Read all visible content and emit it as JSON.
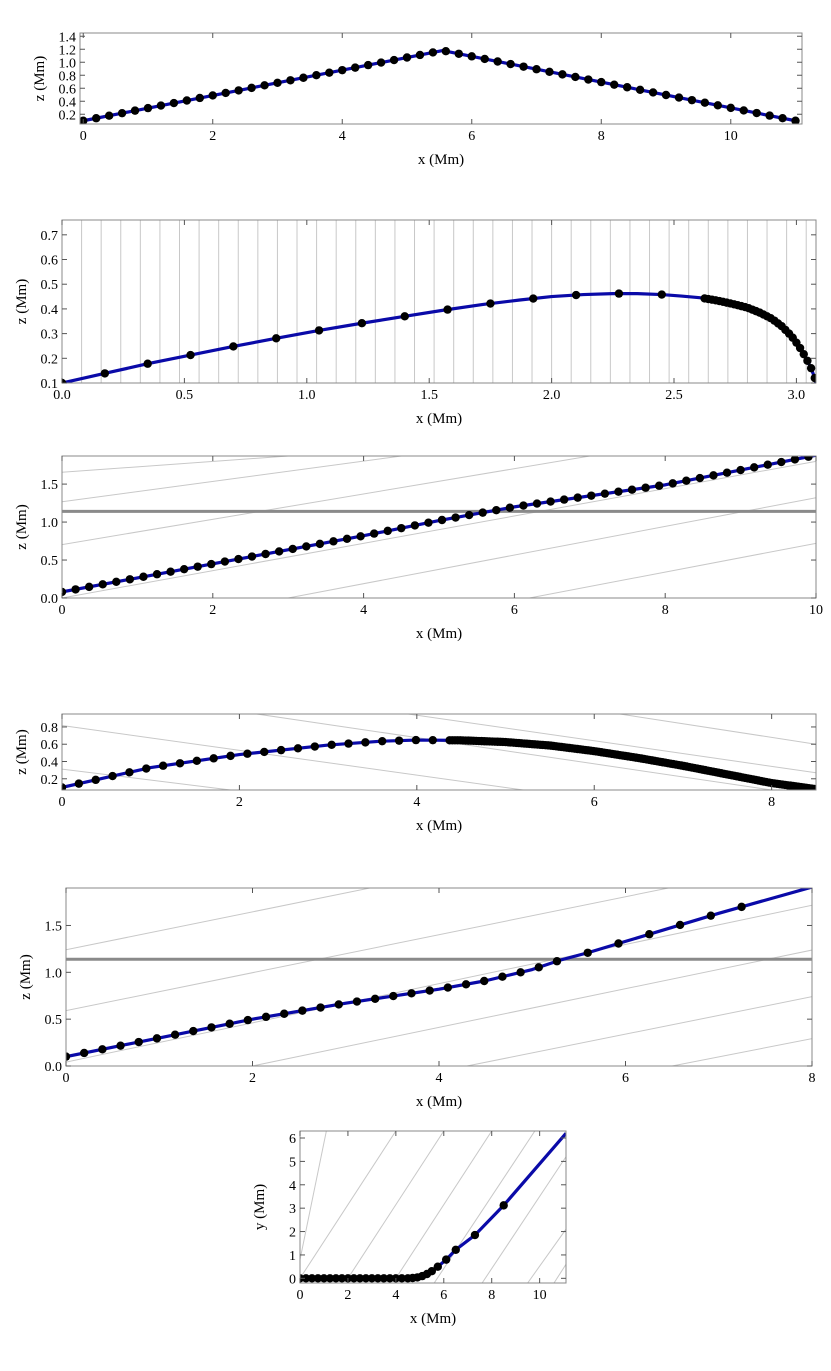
{
  "chart_data": [
    {
      "type": "line",
      "title": "",
      "xlabel": "x (Mm)",
      "ylabel": "z (Mm)",
      "xlim": [
        -0.05,
        11.1
      ],
      "ylim": [
        0.05,
        1.45
      ],
      "xticks": [
        0,
        2,
        4,
        6,
        8,
        10
      ],
      "xtick_labels": [
        "0",
        "2",
        "4",
        "6",
        "8",
        "10"
      ],
      "yticks": [
        0.2,
        0.4,
        0.6,
        0.8,
        1.0,
        1.2,
        1.4
      ],
      "ytick_labels": [
        "0.2",
        "0.4",
        "0.6",
        "0.8",
        "1.0",
        "1.2",
        "1.4"
      ],
      "series": [
        {
          "style": "blue line with black dots",
          "color": "#0a0aa8",
          "x": [
            0,
            5.55,
            11.0
          ],
          "y": [
            0.1,
            1.18,
            0.1
          ],
          "x_markers": [
            0,
            11.0,
            0.2
          ]
        }
      ],
      "guides": {
        "slanted": [],
        "horizontal": [],
        "vertical": []
      },
      "grid": false
    },
    {
      "type": "line",
      "title": "",
      "xlabel": "x (Mm)",
      "ylabel": "z (Mm)",
      "xlim": [
        0,
        3.08
      ],
      "ylim": [
        0.1,
        0.76
      ],
      "xticks": [
        0.0,
        0.5,
        1.0,
        1.5,
        2.0,
        2.5,
        3.0
      ],
      "xtick_labels": [
        "0.0",
        "0.5",
        "1.0",
        "1.5",
        "2.0",
        "2.5",
        "3.0"
      ],
      "yticks": [
        0.1,
        0.2,
        0.3,
        0.4,
        0.5,
        0.6,
        0.7
      ],
      "ytick_labels": [
        "0.1",
        "0.2",
        "0.3",
        "0.4",
        "0.5",
        "0.6",
        "0.7"
      ],
      "series": [
        {
          "style": "blue line with black dots",
          "color": "#0a0aa8",
          "x": [
            0,
            0.18,
            0.35,
            0.53,
            0.7,
            0.88,
            1.05,
            1.23,
            1.4,
            1.56,
            1.72,
            1.87,
            2.0,
            2.13,
            2.25,
            2.35,
            2.45,
            2.53,
            2.61,
            2.68,
            2.74,
            2.8,
            2.85,
            2.9,
            2.94,
            2.98,
            3.01,
            3.04,
            3.06,
            3.075,
            3.08
          ],
          "y": [
            0.1,
            0.14,
            0.178,
            0.214,
            0.248,
            0.282,
            0.313,
            0.343,
            0.37,
            0.395,
            0.418,
            0.436,
            0.45,
            0.458,
            0.462,
            0.462,
            0.458,
            0.452,
            0.445,
            0.433,
            0.42,
            0.405,
            0.385,
            0.36,
            0.33,
            0.29,
            0.25,
            0.2,
            0.16,
            0.12,
            0.1
          ],
          "marker_step": 0.175,
          "marker_step_dense": 0.015,
          "dense_after_x": 2.5
        }
      ],
      "guides": {
        "slanted": [],
        "horizontal": [],
        "vertical": [
          0.08,
          0.16,
          0.24,
          0.32,
          0.4,
          0.48,
          0.56,
          0.64,
          0.72,
          0.8,
          0.88,
          0.96,
          1.04,
          1.12,
          1.2,
          1.28,
          1.36,
          1.44,
          1.52,
          1.6,
          1.68,
          1.76,
          1.84,
          1.92,
          2.0,
          2.08,
          2.16,
          2.24,
          2.32,
          2.4,
          2.48,
          2.56,
          2.64,
          2.72,
          2.8,
          2.88,
          2.96,
          3.04
        ]
      },
      "grid": false
    },
    {
      "type": "line",
      "title": "",
      "xlabel": "x (Mm)",
      "ylabel": "z (Mm)",
      "xlim": [
        0,
        10
      ],
      "ylim": [
        0,
        1.87
      ],
      "xticks": [
        0,
        2,
        4,
        6,
        8,
        10
      ],
      "xtick_labels": [
        "0",
        "2",
        "4",
        "6",
        "8",
        "10"
      ],
      "yticks": [
        0.0,
        0.5,
        1.0,
        1.5
      ],
      "ytick_labels": [
        "0.0",
        "0.5",
        "1.0",
        "1.5"
      ],
      "series": [
        {
          "style": "blue line with black dots",
          "color": "#0a0aa8",
          "x": [
            0,
            2,
            4,
            5,
            5.5,
            6,
            8,
            10
          ],
          "y": [
            0.08,
            0.45,
            0.82,
            1.02,
            1.11,
            1.2,
            1.49,
            1.88
          ],
          "x_markers": [
            0,
            10,
            0.18
          ]
        }
      ],
      "guides": {
        "slanted": [
          [
            -0.5,
            1.62,
            3.0,
            1.87
          ],
          [
            -0.5,
            1.2,
            4.5,
            1.87
          ],
          [
            -0.5,
            0.62,
            7.0,
            1.87
          ],
          [
            0.0,
            0.0,
            10.0,
            1.8
          ],
          [
            3.0,
            0.0,
            10.0,
            1.32
          ],
          [
            6.2,
            0.0,
            10.0,
            0.72
          ]
        ],
        "horizontal": [
          1.14
        ],
        "vertical": []
      },
      "grid": false
    },
    {
      "type": "line",
      "title": "",
      "xlabel": "x (Mm)",
      "ylabel": "z (Mm)",
      "xlim": [
        0,
        8.5
      ],
      "ylim": [
        0.07,
        0.95
      ],
      "xticks": [
        0,
        2,
        4,
        6,
        8
      ],
      "xtick_labels": [
        "0",
        "2",
        "4",
        "6",
        "8"
      ],
      "yticks": [
        0.2,
        0.4,
        0.6,
        0.8
      ],
      "ytick_labels": [
        "0.2",
        "0.4",
        "0.6",
        "0.8"
      ],
      "series": [
        {
          "style": "blue line with black dots",
          "color": "#0a0aa8",
          "x": [
            0,
            1,
            2,
            3,
            3.6,
            4,
            4.5,
            5,
            5.5,
            6,
            6.5,
            7,
            7.5,
            8,
            8.5
          ],
          "y": [
            0.1,
            0.33,
            0.48,
            0.59,
            0.635,
            0.648,
            0.645,
            0.625,
            0.585,
            0.52,
            0.44,
            0.35,
            0.25,
            0.15,
            0.08
          ],
          "marker_step": 0.19,
          "marker_step_dense": 0.03,
          "dense_after_x": 4.3
        }
      ],
      "guides": {
        "slanted": [
          [
            -0.3,
            0.86,
            5.2,
            0.07
          ],
          [
            2.0,
            0.98,
            8.0,
            0.07
          ],
          [
            3.7,
            0.98,
            8.5,
            0.27
          ],
          [
            6.1,
            0.98,
            8.5,
            0.6
          ],
          [
            -0.3,
            0.35,
            1.9,
            0.07
          ]
        ],
        "horizontal": [],
        "vertical": []
      },
      "grid": false
    },
    {
      "type": "line",
      "title": "",
      "xlabel": "x (Mm)",
      "ylabel": "z (Mm)",
      "xlim": [
        0,
        8
      ],
      "ylim": [
        0,
        1.9
      ],
      "xticks": [
        0,
        2,
        4,
        6,
        8
      ],
      "xtick_labels": [
        "0",
        "2",
        "4",
        "6",
        "8"
      ],
      "yticks": [
        0.0,
        0.5,
        1.0,
        1.5
      ],
      "ytick_labels": [
        "0.0",
        "0.5",
        "1.0",
        "1.5"
      ],
      "series": [
        {
          "style": "blue line with black dots",
          "color": "#0a0aa8",
          "x": [
            0,
            1,
            2,
            3,
            4,
            4.5,
            5,
            5.3,
            5.6,
            6,
            7,
            8
          ],
          "y": [
            0.1,
            0.3,
            0.5,
            0.67,
            0.82,
            0.91,
            1.03,
            1.13,
            1.21,
            1.33,
            1.63,
            1.91
          ],
          "marker_step": 0.195,
          "marker_step_sparse": 0.33,
          "sparse_after_x": 5.2,
          "marker_end_x": 7.4
        }
      ],
      "guides": {
        "slanted": [
          [
            -0.2,
            1.2,
            4.0,
            2.05
          ],
          [
            -0.2,
            0.55,
            7.2,
            2.05
          ],
          [
            -0.2,
            0.0,
            8.4,
            1.8
          ],
          [
            2.0,
            0.0,
            8.4,
            1.32
          ],
          [
            4.3,
            0.0,
            8.4,
            0.82
          ],
          [
            6.5,
            0.0,
            8.4,
            0.37
          ]
        ],
        "horizontal": [
          1.14
        ],
        "vertical": []
      },
      "grid": false
    },
    {
      "type": "line",
      "title": "",
      "xlabel": "x (Mm)",
      "ylabel": "y (Mm)",
      "xlim": [
        0,
        11.1
      ],
      "ylim": [
        -0.2,
        6.3
      ],
      "xticks": [
        0,
        2,
        4,
        6,
        8,
        10
      ],
      "xtick_labels": [
        "0",
        "2",
        "4",
        "6",
        "8",
        "10"
      ],
      "yticks": [
        0,
        1,
        2,
        3,
        4,
        5,
        6
      ],
      "ytick_labels": [
        "0",
        "1",
        "2",
        "3",
        "4",
        "5",
        "6"
      ],
      "series": [
        {
          "style": "blue line with black dots",
          "color": "#0a0aa8",
          "x": [
            0,
            4.5,
            4.8,
            5.0,
            5.2,
            5.4,
            5.6,
            5.8,
            6.1,
            6.5,
            7.3,
            8.5,
            11.1
          ],
          "y": [
            0,
            0,
            0.02,
            0.06,
            0.13,
            0.24,
            0.37,
            0.54,
            0.8,
            1.22,
            1.85,
            3.12,
            6.2
          ],
          "x_markers_list": [
            0,
            0.25,
            0.5,
            0.75,
            1.0,
            1.25,
            1.5,
            1.75,
            2.0,
            2.25,
            2.5,
            2.75,
            3.0,
            3.25,
            3.5,
            3.75,
            4.0,
            4.25,
            4.5,
            4.7,
            4.9,
            5.1,
            5.3,
            5.5,
            5.75,
            6.1,
            6.5,
            7.3,
            8.5
          ]
        }
      ],
      "guides": {
        "slanted": [
          [
            0,
            0.8,
            1.1,
            6.3
          ],
          [
            0,
            0.0,
            4.0,
            6.3
          ],
          [
            2.0,
            0.0,
            6.0,
            6.3
          ],
          [
            4.0,
            0.0,
            8.0,
            6.3
          ],
          [
            5.6,
            -0.2,
            9.8,
            6.3
          ],
          [
            7.6,
            -0.2,
            11.1,
            5.2
          ],
          [
            9.5,
            -0.2,
            11.1,
            2.1
          ],
          [
            10.6,
            -0.2,
            11.1,
            0.6
          ]
        ],
        "horizontal": [],
        "vertical": []
      },
      "grid": false
    }
  ]
}
